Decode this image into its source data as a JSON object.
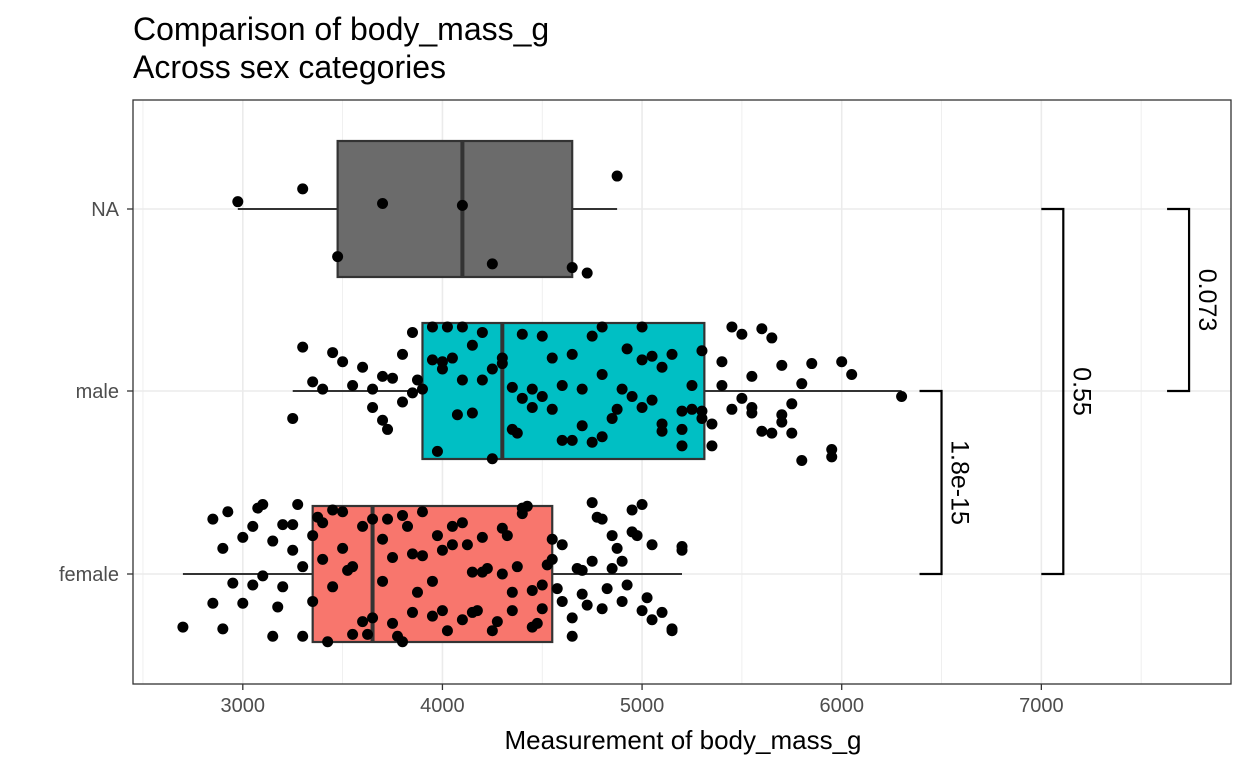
{
  "chart_data": {
    "type": "boxplot",
    "title": "Comparison of body_mass_g",
    "subtitle": "Across sex categories",
    "xlabel": "Measurement of body_mass_g",
    "ylabel": "",
    "xlim": [
      2450,
      7950
    ],
    "x_ticks": [
      3000,
      4000,
      5000,
      6000,
      7000
    ],
    "x_tick_labels": [
      "3000",
      "4000",
      "5000",
      "6000",
      "7000"
    ],
    "grid": true,
    "categories": [
      "female",
      "male",
      "NA"
    ],
    "boxes": [
      {
        "category": "female",
        "fill": "#F8766D",
        "min": 2700,
        "q1": 3350,
        "median": 3650,
        "q3": 4550,
        "max": 5200
      },
      {
        "category": "male",
        "fill": "#00BFC4",
        "min": 3250,
        "q1": 3900,
        "median": 4300,
        "q3": 5312,
        "max": 6300
      },
      {
        "category": "NA",
        "fill": "#6B6B6B",
        "min": 2975,
        "q1": 3475,
        "median": 4100,
        "q3": 4650,
        "max": 4875
      }
    ],
    "points": [
      {
        "category": "NA",
        "values": [
          [
            2975,
            0.04
          ],
          [
            3300,
            0.11
          ],
          [
            3700,
            0.03
          ],
          [
            4100,
            0.02
          ],
          [
            4875,
            0.18
          ],
          [
            3475,
            -0.26
          ],
          [
            4250,
            -0.3
          ],
          [
            4650,
            -0.32
          ],
          [
            4725,
            -0.35
          ]
        ]
      },
      {
        "category": "male",
        "values": [
          [
            3250,
            -0.15
          ],
          [
            3300,
            0.24
          ],
          [
            3350,
            0.05
          ],
          [
            3400,
            0.01
          ],
          [
            3450,
            0.21
          ],
          [
            3500,
            0.16
          ],
          [
            3550,
            0.03
          ],
          [
            3600,
            0.13
          ],
          [
            3650,
            0.01
          ],
          [
            3700,
            -0.16
          ],
          [
            3750,
            0.07
          ],
          [
            3800,
            0.2
          ],
          [
            3850,
            -0.01
          ],
          [
            3900,
            0.01
          ],
          [
            3950,
            0.17
          ],
          [
            4000,
            0.12
          ],
          [
            4050,
            0.18
          ],
          [
            4100,
            0.06
          ],
          [
            4150,
            -0.12
          ],
          [
            4200,
            0.06
          ],
          [
            4250,
            -0.37
          ],
          [
            4300,
            0.18
          ],
          [
            4350,
            0.02
          ],
          [
            4400,
            0.31
          ],
          [
            4450,
            -0.09
          ],
          [
            4500,
            -0.03
          ],
          [
            4550,
            0.18
          ],
          [
            4600,
            0.03
          ],
          [
            4650,
            -0.27
          ],
          [
            4700,
            0.01
          ],
          [
            4750,
            -0.28
          ],
          [
            4800,
            -0.25
          ],
          [
            4850,
            -0.15
          ],
          [
            4900,
            0.01
          ],
          [
            4950,
            -0.03
          ],
          [
            5000,
            -0.09
          ],
          [
            5050,
            -0.05
          ],
          [
            5100,
            -0.18
          ],
          [
            5150,
            0.2
          ],
          [
            5200,
            -0.11
          ],
          [
            5250,
            0.03
          ],
          [
            5300,
            -0.11
          ],
          [
            5350,
            -0.18
          ],
          [
            5400,
            0.03
          ],
          [
            5450,
            -0.1
          ],
          [
            5500,
            0.31
          ],
          [
            5550,
            0.08
          ],
          [
            5600,
            0.34
          ],
          [
            5650,
            0.29
          ],
          [
            5700,
            -0.13
          ],
          [
            5750,
            -0.07
          ],
          [
            5800,
            0.04
          ],
          [
            5850,
            0.15
          ],
          [
            5950,
            -0.36
          ],
          [
            6000,
            0.16
          ],
          [
            6050,
            0.09
          ],
          [
            6300,
            -0.03
          ],
          [
            3850,
            0.32
          ],
          [
            3950,
            0.35
          ],
          [
            3975,
            -0.33
          ],
          [
            4100,
            0.35
          ],
          [
            4150,
            0.25
          ],
          [
            4250,
            0.12
          ],
          [
            4300,
            0.15
          ],
          [
            4375,
            -0.23
          ],
          [
            4450,
            0.01
          ],
          [
            4550,
            -0.1
          ],
          [
            4600,
            -0.27
          ],
          [
            4700,
            -0.19
          ],
          [
            4750,
            0.3
          ],
          [
            4800,
            0.35
          ],
          [
            4875,
            -0.1
          ],
          [
            4925,
            0.23
          ],
          [
            5000,
            0.35
          ],
          [
            5050,
            0.19
          ],
          [
            5100,
            0.13
          ],
          [
            5200,
            -0.3
          ],
          [
            5250,
            -0.1
          ],
          [
            5300,
            -0.15
          ],
          [
            5350,
            -0.3
          ],
          [
            5400,
            0.16
          ],
          [
            5450,
            0.35
          ],
          [
            5500,
            -0.04
          ],
          [
            5550,
            -0.09
          ],
          [
            5600,
            -0.22
          ],
          [
            5650,
            -0.23
          ],
          [
            5700,
            -0.17
          ],
          [
            5750,
            -0.23
          ],
          [
            5800,
            -0.38
          ],
          [
            5950,
            -0.32
          ],
          [
            3650,
            -0.09
          ],
          [
            3700,
            0.08
          ],
          [
            3725,
            -0.21
          ],
          [
            3800,
            -0.06
          ],
          [
            3875,
            0.06
          ],
          [
            4000,
            0.16
          ],
          [
            4025,
            0.35
          ],
          [
            4075,
            -0.13
          ],
          [
            4200,
            0.32
          ],
          [
            4350,
            -0.21
          ],
          [
            4400,
            -0.04
          ],
          [
            4500,
            0.3
          ],
          [
            4650,
            0.2
          ],
          [
            4800,
            0.09
          ],
          [
            5000,
            0.17
          ],
          [
            5100,
            -0.22
          ],
          [
            5200,
            -0.21
          ],
          [
            5300,
            0.22
          ],
          [
            5550,
            -0.12
          ],
          [
            5700,
            0.14
          ]
        ]
      },
      {
        "category": "female",
        "values": [
          [
            2700,
            -0.29
          ],
          [
            2850,
            0.3
          ],
          [
            2900,
            -0.3
          ],
          [
            2925,
            0.34
          ],
          [
            3000,
            0.2
          ],
          [
            3050,
            -0.06
          ],
          [
            3100,
            0.38
          ],
          [
            3150,
            0.18
          ],
          [
            3200,
            0.27
          ],
          [
            3250,
            0.27
          ],
          [
            3300,
            0.04
          ],
          [
            3350,
            -0.15
          ],
          [
            3400,
            0.28
          ],
          [
            3450,
            0.35
          ],
          [
            3500,
            0.34
          ],
          [
            3550,
            -0.33
          ],
          [
            3600,
            0.26
          ],
          [
            3650,
            -0.24
          ],
          [
            3700,
            -0.04
          ],
          [
            3750,
            0.09
          ],
          [
            3800,
            0.32
          ],
          [
            3850,
            -0.21
          ],
          [
            3900,
            0.1
          ],
          [
            3950,
            -0.23
          ],
          [
            4000,
            0.13
          ],
          [
            4050,
            0.26
          ],
          [
            4100,
            -0.25
          ],
          [
            4150,
            0.01
          ],
          [
            4200,
            0.2
          ],
          [
            4250,
            -0.31
          ],
          [
            4300,
            0.0
          ],
          [
            4350,
            -0.2
          ],
          [
            4400,
            0.36
          ],
          [
            4450,
            -0.09
          ],
          [
            4500,
            -0.19
          ],
          [
            4550,
            0.19
          ],
          [
            4600,
            -0.15
          ],
          [
            4650,
            -0.34
          ],
          [
            4700,
            0.02
          ],
          [
            4750,
            0.39
          ],
          [
            4800,
            -0.19
          ],
          [
            4850,
            0.21
          ],
          [
            4900,
            0.07
          ],
          [
            4950,
            0.23
          ],
          [
            5000,
            0.38
          ],
          [
            5050,
            -0.25
          ],
          [
            5100,
            -0.21
          ],
          [
            5150,
            -0.31
          ],
          [
            5200,
            0.15
          ],
          [
            2850,
            -0.16
          ],
          [
            2900,
            0.14
          ],
          [
            3000,
            -0.16
          ],
          [
            3050,
            0.26
          ],
          [
            3100,
            -0.01
          ],
          [
            3150,
            -0.34
          ],
          [
            3200,
            -0.07
          ],
          [
            3250,
            0.13
          ],
          [
            3300,
            -0.34
          ],
          [
            3350,
            0.21
          ],
          [
            3400,
            0.08
          ],
          [
            3450,
            -0.07
          ],
          [
            3500,
            0.14
          ],
          [
            3550,
            0.04
          ],
          [
            3600,
            -0.26
          ],
          [
            3650,
            0.3
          ],
          [
            3700,
            0.19
          ],
          [
            3750,
            -0.27
          ],
          [
            3800,
            -0.37
          ],
          [
            3850,
            0.11
          ],
          [
            3900,
            0.34
          ],
          [
            3950,
            -0.04
          ],
          [
            4000,
            -0.2
          ],
          [
            4050,
            0.16
          ],
          [
            4100,
            0.28
          ],
          [
            4150,
            -0.21
          ],
          [
            4200,
            0.01
          ],
          [
            4300,
            0.25
          ],
          [
            4350,
            -0.1
          ],
          [
            4400,
            0.33
          ],
          [
            4450,
            -0.29
          ],
          [
            4500,
            -0.06
          ],
          [
            4550,
            0.08
          ],
          [
            4600,
            0.16
          ],
          [
            4650,
            -0.24
          ],
          [
            4700,
            -0.11
          ],
          [
            4750,
            0.07
          ],
          [
            4800,
            0.3
          ],
          [
            4850,
            0.03
          ],
          [
            4900,
            -0.15
          ],
          [
            4950,
            0.35
          ],
          [
            5000,
            -0.2
          ],
          [
            5050,
            0.16
          ],
          [
            5150,
            -0.3
          ],
          [
            5200,
            0.13
          ],
          [
            2950,
            -0.05
          ],
          [
            3075,
            0.36
          ],
          [
            3175,
            -0.18
          ],
          [
            3275,
            0.38
          ],
          [
            3375,
            0.31
          ],
          [
            3425,
            -0.37
          ],
          [
            3525,
            0.02
          ],
          [
            3625,
            -0.33
          ],
          [
            3725,
            0.3
          ],
          [
            3775,
            -0.34
          ],
          [
            3825,
            0.26
          ],
          [
            3875,
            -0.1
          ],
          [
            3975,
            0.21
          ],
          [
            4025,
            -0.31
          ],
          [
            4125,
            0.16
          ],
          [
            4175,
            -0.2
          ],
          [
            4225,
            0.03
          ],
          [
            4275,
            -0.26
          ],
          [
            4325,
            0.21
          ],
          [
            4375,
            0.04
          ],
          [
            4425,
            0.37
          ],
          [
            4475,
            -0.27
          ],
          [
            4525,
            0.05
          ],
          [
            4575,
            -0.08
          ],
          [
            4675,
            0.03
          ],
          [
            4725,
            -0.17
          ],
          [
            4775,
            0.31
          ],
          [
            4825,
            -0.08
          ],
          [
            4875,
            0.14
          ],
          [
            4925,
            -0.06
          ],
          [
            4975,
            0.21
          ],
          [
            5025,
            -0.13
          ]
        ]
      }
    ],
    "comparisons": [
      {
        "group1": "female",
        "group2": "male",
        "p_label": "1.8e-15",
        "x_position": 6500
      },
      {
        "group1": "female",
        "group2": "NA",
        "p_label": "0.55",
        "x_position": 7110
      },
      {
        "group1": "male",
        "group2": "NA",
        "p_label": "0.073",
        "x_position": 7740
      }
    ],
    "colors": {
      "female": "#F8766D",
      "male": "#00BFC4",
      "NA": "#6B6B6B"
    }
  }
}
